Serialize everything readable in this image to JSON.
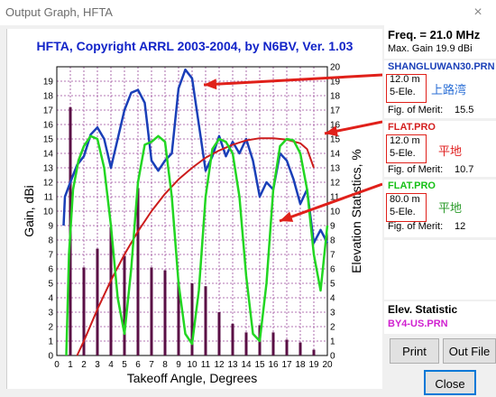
{
  "window": {
    "title": "Output Graph, HFTA",
    "close_glyph": "×"
  },
  "chart_data": {
    "type": "bar+line",
    "title": "HFTA, Copyright ARRL 2003-2004, by N6BV, Ver. 1.03",
    "xlabel": "Takeoff Angle, Degrees",
    "ylabel": "Gain, dBi",
    "y2label": "Elevation Statistics, %",
    "xlim": [
      0,
      20
    ],
    "ylim": [
      0,
      20
    ],
    "y2lim": [
      0,
      20
    ],
    "x_ticks": [
      "0",
      "1",
      "2",
      "3",
      "4",
      "5",
      "6",
      "7",
      "8",
      "9",
      "10",
      "11",
      "12",
      "13",
      "14",
      "15",
      "16",
      "17",
      "18",
      "19",
      "20"
    ],
    "y_ticks": [
      "0",
      "1",
      "2",
      "3",
      "4",
      "5",
      "6",
      "7",
      "8",
      "9",
      "10",
      "11",
      "12",
      "13",
      "14",
      "15",
      "16",
      "17",
      "18",
      "19"
    ],
    "y2_ticks": [
      "0",
      "1",
      "2",
      "3",
      "4",
      "5",
      "6",
      "7",
      "8",
      "9",
      "10",
      "11",
      "12",
      "13",
      "14",
      "15",
      "16",
      "17",
      "18",
      "19",
      "20"
    ],
    "grid": true,
    "elevation_statistics": {
      "x": [
        1,
        2,
        3,
        4,
        5,
        6,
        7,
        8,
        9,
        10,
        11,
        12,
        13,
        14,
        15,
        16,
        17,
        18,
        19
      ],
      "values": [
        17.2,
        6.1,
        7.4,
        8.9,
        6.9,
        11.6,
        6.1,
        5.9,
        5.1,
        5.0,
        4.8,
        3.0,
        2.2,
        1.6,
        2.1,
        1.6,
        1.1,
        0.9,
        0.4
      ]
    },
    "series": [
      {
        "name": "SHANGLUWAN30.PRN",
        "color": "#1a3fb8",
        "x": [
          0.5,
          0.6,
          1,
          1.5,
          2,
          2.5,
          3,
          3.5,
          4,
          4.5,
          5,
          5.5,
          6,
          6.5,
          7,
          7.5,
          8,
          8.5,
          9,
          9.5,
          10,
          10.5,
          11,
          11.5,
          12,
          12.5,
          13,
          13.5,
          14,
          14.5,
          15,
          15.5,
          16,
          16.5,
          17,
          17.5,
          18,
          18.5,
          19,
          19.5,
          20
        ],
        "y": [
          9.0,
          11.0,
          12.0,
          13.2,
          13.8,
          15.3,
          15.8,
          15.0,
          13.0,
          15.0,
          17.0,
          18.2,
          18.4,
          17.5,
          13.5,
          12.8,
          13.5,
          14.0,
          18.5,
          19.8,
          19.2,
          16.0,
          12.8,
          13.8,
          15.2,
          13.8,
          14.8,
          14.0,
          15.0,
          13.5,
          11.0,
          12.0,
          11.5,
          14.0,
          13.5,
          12.2,
          10.5,
          11.5,
          7.8,
          8.7,
          7.8
        ]
      },
      {
        "name": "FLAT.PRO 12.0 m",
        "color": "#cc1c1c",
        "x": [
          1.5,
          2,
          3,
          4,
          5,
          6,
          7,
          8,
          9,
          10,
          11,
          12,
          13,
          14,
          15,
          16,
          17,
          18,
          18.5,
          19
        ],
        "y": [
          0,
          1.0,
          3.2,
          5.2,
          7.0,
          8.6,
          10.0,
          11.2,
          12.2,
          13.0,
          13.7,
          14.2,
          14.6,
          14.9,
          15.05,
          15.05,
          14.95,
          14.7,
          14.3,
          13.0
        ]
      },
      {
        "name": "FLAT.PRO 80.0 m",
        "color": "#22d622",
        "x": [
          0.7,
          0.9,
          1.2,
          1.6,
          2,
          2.5,
          3,
          3.5,
          4,
          4.5,
          5,
          5.5,
          6,
          6.5,
          7,
          7.5,
          8,
          8.5,
          9,
          9.5,
          10,
          10.5,
          11,
          11.5,
          12,
          12.5,
          13,
          13.5,
          14,
          14.5,
          15,
          15.5,
          16,
          16.5,
          17,
          17.5,
          18,
          18.5,
          19,
          19.5,
          20
        ],
        "y": [
          0,
          7.0,
          11.5,
          13.5,
          14.5,
          15.2,
          15.0,
          13.0,
          9.0,
          4.0,
          1.5,
          6.0,
          12.0,
          14.6,
          14.8,
          15.2,
          14.8,
          11.0,
          5.0,
          1.5,
          0.8,
          4.5,
          11.0,
          14.3,
          15.0,
          14.8,
          14.0,
          11.0,
          5.5,
          1.5,
          1.0,
          5.0,
          11.5,
          14.5,
          15.0,
          14.9,
          14.0,
          11.5,
          7.0,
          4.5,
          9.0
        ]
      }
    ]
  },
  "panel": {
    "freq": "Freq. = 21.0 MHz",
    "max_gain": "Max. Gain 19.9 dBi",
    "entries": [
      {
        "file": "SHANGLUWAN30.PRN",
        "height": "12.0 m",
        "elements": "5-Ele.",
        "note": "上路湾",
        "merit_label": "Fig. of Merit:",
        "merit": "15.5",
        "file_color": "#1a3fb8",
        "note_color": "#2b6fd6"
      },
      {
        "file": "FLAT.PRO",
        "height": "12.0 m",
        "elements": "5-Ele.",
        "note": "平地",
        "merit_label": "Fig. of Merit:",
        "merit": "10.7",
        "file_color": "#d42020",
        "note_color": "#e02020"
      },
      {
        "file": "FLAT.PRO",
        "height": "80.0 m",
        "elements": "5-Ele.",
        "note": "平地",
        "merit_label": "Fig. of Merit:",
        "merit": "12",
        "file_color": "#16c016",
        "note_color": "#2a9a2a"
      }
    ],
    "elev_title": "Elev. Statistic",
    "elev_file": "BY4-US.PRN",
    "elev_file_color": "#d020d0"
  },
  "buttons": {
    "print": "Print",
    "outfile": "Out File",
    "close": "Close"
  }
}
